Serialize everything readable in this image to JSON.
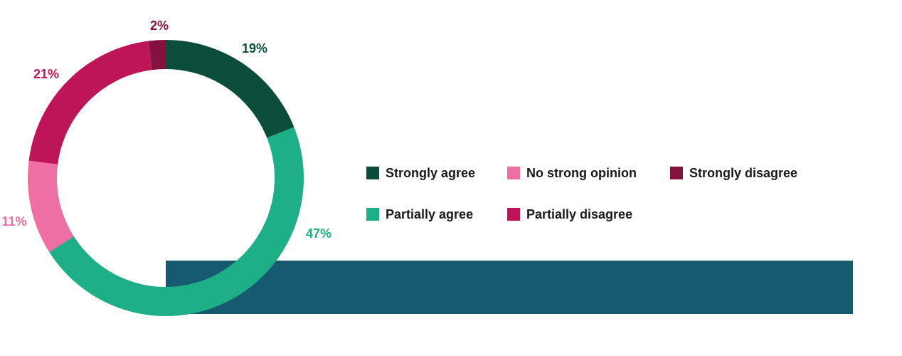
{
  "chart_data": {
    "type": "pie",
    "variant": "donut",
    "categories": [
      "Strongly agree",
      "Partially agree",
      "No strong opinion",
      "Partially disagree",
      "Strongly disagree"
    ],
    "values": [
      19,
      47,
      11,
      21,
      2
    ],
    "value_labels": [
      "19%",
      "47%",
      "11%",
      "21%",
      "2%"
    ],
    "colors": [
      "#0b4d3b",
      "#1eaf86",
      "#ee6fa2",
      "#bd1557",
      "#84123f"
    ],
    "legend_placement": "right",
    "legend": [
      {
        "label": "Strongly agree",
        "color": "#0b4d3b"
      },
      {
        "label": "No strong opinion",
        "color": "#ee6fa2"
      },
      {
        "label": "Strongly disagree",
        "color": "#84123f"
      },
      {
        "label": "Partially agree",
        "color": "#1eaf86"
      },
      {
        "label": "Partially disagree",
        "color": "#bd1557"
      }
    ],
    "band_color": "#165a70"
  }
}
